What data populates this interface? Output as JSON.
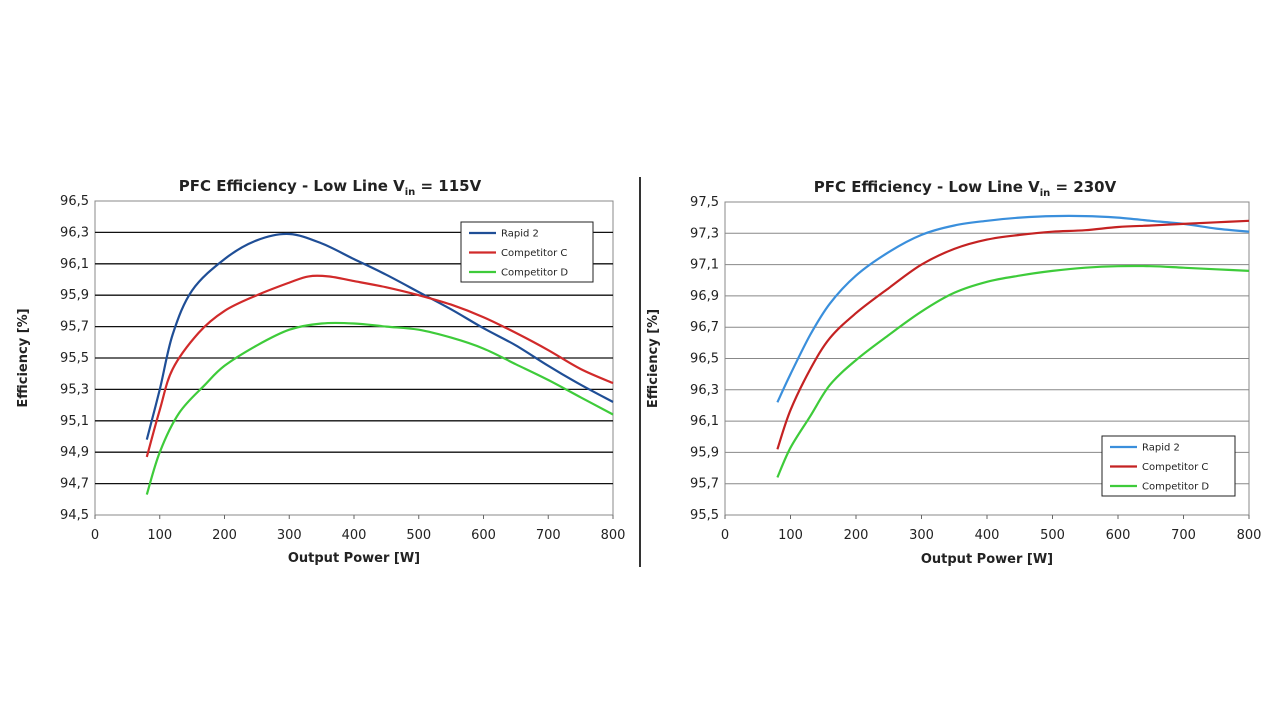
{
  "chart_data": [
    {
      "type": "line",
      "title": "PFC Efficiency - Low Line V",
      "title_sub": "in",
      "title_tail": " = 115V",
      "xlabel": "Output Power [W]",
      "ylabel": "Efficiency [%]",
      "xlim": [
        0,
        800
      ],
      "ylim": [
        94.5,
        96.5
      ],
      "xticks": [
        "0",
        "100",
        "200",
        "300",
        "400",
        "500",
        "600",
        "700",
        "800"
      ],
      "yticks": [
        "94,5",
        "94,7",
        "94,9",
        "95,1",
        "95,3",
        "95,5",
        "95,7",
        "95,9",
        "96,1",
        "96,3",
        "96,5"
      ],
      "grid": true,
      "legend_position": "top-right",
      "series": [
        {
          "name": "Rapid 2",
          "color": "#1f4e96",
          "points": [
            [
              80,
              94.98
            ],
            [
              100,
              95.3
            ],
            [
              120,
              95.65
            ],
            [
              150,
              95.93
            ],
            [
              200,
              96.13
            ],
            [
              250,
              96.25
            ],
            [
              300,
              96.29
            ],
            [
              350,
              96.23
            ],
            [
              400,
              96.13
            ],
            [
              450,
              96.03
            ],
            [
              500,
              95.92
            ],
            [
              550,
              95.81
            ],
            [
              600,
              95.69
            ],
            [
              650,
              95.58
            ],
            [
              700,
              95.45
            ],
            [
              750,
              95.33
            ],
            [
              800,
              95.22
            ]
          ]
        },
        {
          "name": "Competitor C",
          "color": "#d12a2a",
          "points": [
            [
              80,
              94.87
            ],
            [
              100,
              95.17
            ],
            [
              120,
              95.43
            ],
            [
              160,
              95.66
            ],
            [
              200,
              95.8
            ],
            [
              250,
              95.9
            ],
            [
              300,
              95.98
            ],
            [
              330,
              96.02
            ],
            [
              360,
              96.02
            ],
            [
              400,
              95.99
            ],
            [
              450,
              95.95
            ],
            [
              500,
              95.9
            ],
            [
              550,
              95.84
            ],
            [
              600,
              95.76
            ],
            [
              650,
              95.66
            ],
            [
              700,
              95.55
            ],
            [
              750,
              95.43
            ],
            [
              800,
              95.34
            ]
          ]
        },
        {
          "name": "Competitor D",
          "color": "#3ecb3a",
          "points": [
            [
              80,
              94.63
            ],
            [
              100,
              94.9
            ],
            [
              130,
              95.15
            ],
            [
              170,
              95.33
            ],
            [
              200,
              95.45
            ],
            [
              250,
              95.58
            ],
            [
              300,
              95.68
            ],
            [
              350,
              95.72
            ],
            [
              400,
              95.72
            ],
            [
              450,
              95.7
            ],
            [
              500,
              95.68
            ],
            [
              550,
              95.63
            ],
            [
              600,
              95.56
            ],
            [
              650,
              95.46
            ],
            [
              700,
              95.36
            ],
            [
              750,
              95.25
            ],
            [
              800,
              95.14
            ]
          ]
        }
      ]
    },
    {
      "type": "line",
      "title": "PFC Efficiency - Low Line V",
      "title_sub": "in",
      "title_tail": " = 230V",
      "xlabel": "Output Power [W]",
      "ylabel": "Efficiency [%]",
      "xlim": [
        0,
        800
      ],
      "ylim": [
        95.5,
        97.5
      ],
      "xticks": [
        "0",
        "100",
        "200",
        "300",
        "400",
        "500",
        "600",
        "700",
        "800"
      ],
      "yticks": [
        "95,5",
        "95,7",
        "95,9",
        "96,1",
        "96,3",
        "96,5",
        "96,7",
        "96,9",
        "97,1",
        "97,3",
        "97,5"
      ],
      "grid": true,
      "legend_position": "bottom-right",
      "series": [
        {
          "name": "Rapid 2",
          "color": "#3a8fdc",
          "points": [
            [
              80,
              96.22
            ],
            [
              100,
              96.4
            ],
            [
              130,
              96.65
            ],
            [
              160,
              96.85
            ],
            [
              200,
              97.03
            ],
            [
              250,
              97.18
            ],
            [
              300,
              97.29
            ],
            [
              350,
              97.35
            ],
            [
              400,
              97.38
            ],
            [
              450,
              97.4
            ],
            [
              500,
              97.41
            ],
            [
              550,
              97.41
            ],
            [
              600,
              97.4
            ],
            [
              650,
              97.38
            ],
            [
              700,
              97.36
            ],
            [
              750,
              97.33
            ],
            [
              800,
              97.31
            ]
          ]
        },
        {
          "name": "Competitor C",
          "color": "#c42222",
          "points": [
            [
              80,
              95.92
            ],
            [
              100,
              96.17
            ],
            [
              130,
              96.43
            ],
            [
              160,
              96.63
            ],
            [
              200,
              96.79
            ],
            [
              250,
              96.95
            ],
            [
              300,
              97.1
            ],
            [
              350,
              97.2
            ],
            [
              400,
              97.26
            ],
            [
              450,
              97.29
            ],
            [
              500,
              97.31
            ],
            [
              550,
              97.32
            ],
            [
              600,
              97.34
            ],
            [
              650,
              97.35
            ],
            [
              700,
              97.36
            ],
            [
              750,
              97.37
            ],
            [
              800,
              97.38
            ]
          ]
        },
        {
          "name": "Competitor D",
          "color": "#3ecb3a",
          "points": [
            [
              80,
              95.74
            ],
            [
              100,
              95.93
            ],
            [
              130,
              96.13
            ],
            [
              160,
              96.33
            ],
            [
              200,
              96.49
            ],
            [
              250,
              96.65
            ],
            [
              300,
              96.8
            ],
            [
              350,
              96.92
            ],
            [
              400,
              96.99
            ],
            [
              450,
              97.03
            ],
            [
              500,
              97.06
            ],
            [
              550,
              97.08
            ],
            [
              600,
              97.09
            ],
            [
              650,
              97.09
            ],
            [
              700,
              97.08
            ],
            [
              750,
              97.07
            ],
            [
              800,
              97.06
            ]
          ]
        }
      ]
    }
  ]
}
